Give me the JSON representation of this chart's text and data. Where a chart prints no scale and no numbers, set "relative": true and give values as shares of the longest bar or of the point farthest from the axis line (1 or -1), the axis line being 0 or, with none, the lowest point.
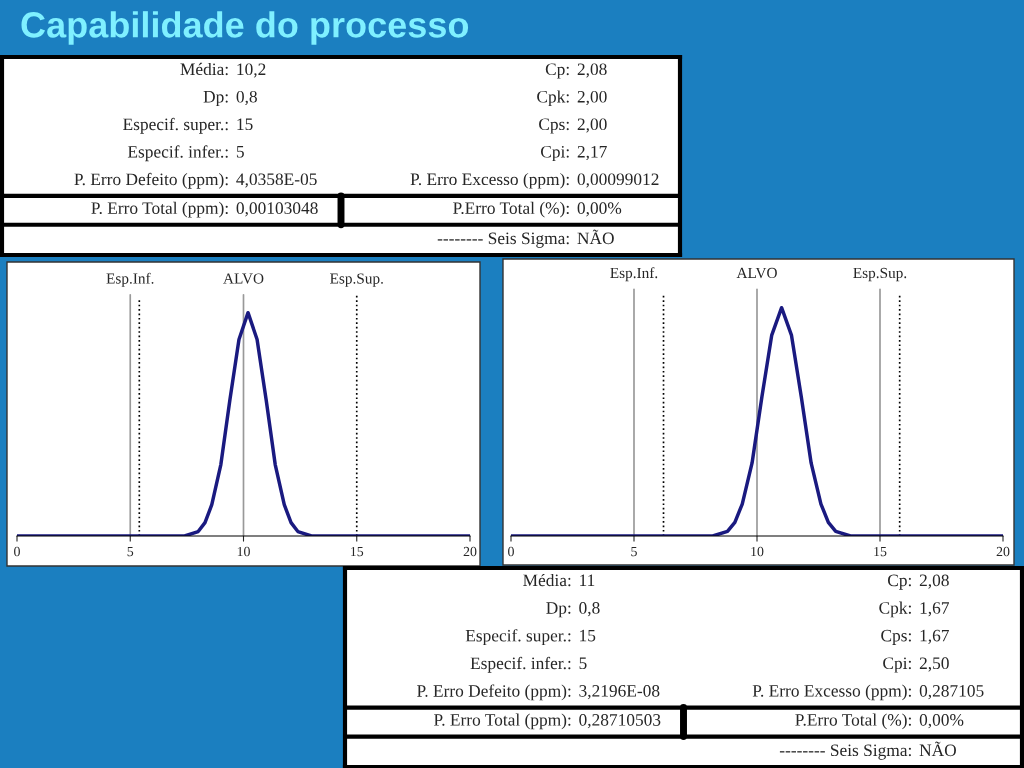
{
  "chart_data": [
    {
      "type": "other",
      "title": "Capabilidade do processo",
      "annotations": [
        "Média:",
        "10,2",
        "Cp:",
        "2,08",
        "Dp:",
        "0,8",
        "Cpk:",
        "2,00",
        "Especif. super.:",
        "15",
        "Cps:",
        "2,00",
        "Especif. infer.:",
        "5",
        "Cpi:",
        "2,17",
        "P. Erro Defeito (ppm):",
        "4,0358E-05",
        "P. Erro Excesso (ppm):",
        "0,00099012",
        "P. Erro Total (ppm):",
        "0,00103048",
        "P.Erro Total (%):",
        "0,00%",
        "-------- Seis Sigma:",
        "NÃO"
      ]
    },
    {
      "type": "line",
      "relative": true,
      "xlim": [
        0,
        20
      ],
      "xticks": [
        0,
        5,
        10,
        15,
        20
      ],
      "grid": false,
      "marker": "none",
      "line_style": "solid",
      "series": [
        {
          "color": "#1a1a80",
          "x": [
            0,
            7.4,
            8.0,
            8.3,
            8.6,
            9.0,
            9.4,
            9.8,
            10.2,
            10.6,
            11.0,
            11.4,
            11.8,
            12.1,
            12.4,
            13.0,
            20
          ],
          "values": [
            0,
            0,
            0.02,
            0.06,
            0.14,
            0.32,
            0.61,
            0.88,
            1,
            0.88,
            0.61,
            0.32,
            0.14,
            0.06,
            0.02,
            0,
            0
          ]
        }
      ],
      "ref_lines": [
        {
          "axis": "x",
          "value": 5,
          "label": "Esp.Inf.",
          "color": "#999999",
          "line_style": "solid"
        },
        {
          "axis": "x",
          "value": 5.4,
          "color": "#000000",
          "line_style": "dotted"
        },
        {
          "axis": "x",
          "value": 10,
          "label": "ALVO",
          "color": "#999999",
          "line_style": "solid"
        },
        {
          "axis": "x",
          "value": 15,
          "label": "Esp.Sup.",
          "color": "#000000",
          "line_style": "dotted"
        }
      ]
    },
    {
      "type": "line",
      "relative": true,
      "xlim": [
        0,
        20
      ],
      "xticks": [
        0,
        5,
        10,
        15,
        20
      ],
      "grid": false,
      "marker": "none",
      "line_style": "solid",
      "series": [
        {
          "color": "#1a1a80",
          "x": [
            0,
            8.2,
            8.8,
            9.1,
            9.4,
            9.8,
            10.2,
            10.6,
            11.0,
            11.4,
            11.8,
            12.2,
            12.6,
            12.9,
            13.2,
            13.8,
            20
          ],
          "values": [
            0,
            0,
            0.02,
            0.06,
            0.14,
            0.32,
            0.61,
            0.88,
            1,
            0.88,
            0.61,
            0.32,
            0.14,
            0.06,
            0.02,
            0,
            0
          ]
        }
      ],
      "ref_lines": [
        {
          "axis": "x",
          "value": 5,
          "label": "Esp.Inf.",
          "color": "#999999",
          "line_style": "solid"
        },
        {
          "axis": "x",
          "value": 6.2,
          "color": "#000000",
          "line_style": "dotted"
        },
        {
          "axis": "x",
          "value": 10,
          "label": "ALVO",
          "color": "#999999",
          "line_style": "solid"
        },
        {
          "axis": "x",
          "value": 15,
          "label": "Esp.Sup.",
          "color": "#999999",
          "line_style": "solid"
        },
        {
          "axis": "x",
          "value": 15.8,
          "color": "#000000",
          "line_style": "dotted"
        }
      ]
    },
    {
      "type": "other",
      "annotations": [
        "Média:",
        "11",
        "Cp:",
        "2,08",
        "Dp:",
        "0,8",
        "Cpk:",
        "1,67",
        "Especif. super.:",
        "15",
        "Cps:",
        "1,67",
        "Especif. infer.:",
        "5",
        "Cpi:",
        "2,50",
        "P. Erro Defeito (ppm):",
        "3,2196E-08",
        "P. Erro Excesso (ppm):",
        "0,287105",
        "P. Erro Total (ppm):",
        "0,28710503",
        "P.Erro Total (%):",
        "0,00%",
        "-------- Seis Sigma:",
        "NÃO"
      ]
    }
  ]
}
